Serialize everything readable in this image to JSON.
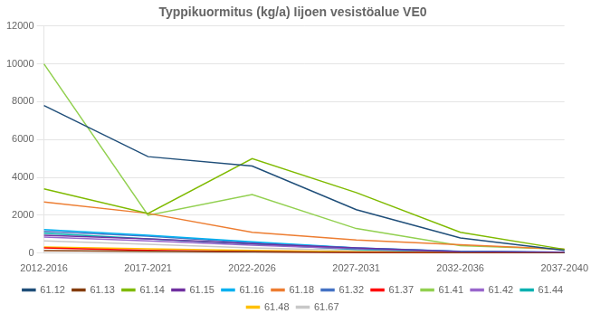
{
  "chart_data": {
    "type": "line",
    "title": "Typpikuormitus (kg/a) Iijoen vesistöalue VE0",
    "categories": [
      "2012-2016",
      "2017-2021",
      "2022-2026",
      "2027-2031",
      "2032-2036",
      "2037-2040"
    ],
    "series": [
      {
        "name": "61.12",
        "color": "#1f4e79",
        "values": [
          7800,
          5100,
          4600,
          2300,
          800,
          150
        ]
      },
      {
        "name": "61.13",
        "color": "#843c0c",
        "values": [
          130,
          100,
          70,
          40,
          15,
          8
        ]
      },
      {
        "name": "61.14",
        "color": "#7fba00",
        "values": [
          3400,
          2100,
          5000,
          3200,
          1100,
          200
        ]
      },
      {
        "name": "61.15",
        "color": "#7030a0",
        "values": [
          950,
          750,
          500,
          280,
          90,
          45
        ]
      },
      {
        "name": "61.16",
        "color": "#00b0f0",
        "values": [
          1250,
          950,
          600,
          280,
          95,
          45
        ]
      },
      {
        "name": "61.18",
        "color": "#ed7d31",
        "values": [
          2700,
          2100,
          1100,
          700,
          450,
          200
        ]
      },
      {
        "name": "61.32",
        "color": "#4472c4",
        "values": [
          1150,
          900,
          550,
          270,
          90,
          40
        ]
      },
      {
        "name": "61.37",
        "color": "#ff0000",
        "values": [
          280,
          150,
          80,
          40,
          15,
          8
        ]
      },
      {
        "name": "61.41",
        "color": "#92d050",
        "values": [
          10000,
          2000,
          3100,
          1300,
          400,
          200
        ]
      },
      {
        "name": "61.42",
        "color": "#9966cc",
        "values": [
          850,
          650,
          420,
          230,
          75,
          35
        ]
      },
      {
        "name": "61.44",
        "color": "#00b0b0",
        "values": [
          1050,
          750,
          480,
          190,
          75,
          35
        ]
      },
      {
        "name": "61.48",
        "color": "#ffc000",
        "values": [
          330,
          230,
          140,
          70,
          28,
          12
        ]
      },
      {
        "name": "61.67",
        "color": "#c8c8c8",
        "values": [
          650,
          470,
          280,
          140,
          48,
          22
        ]
      }
    ],
    "ylim": [
      0,
      12000
    ],
    "yticks": [
      0,
      2000,
      4000,
      6000,
      8000,
      10000,
      12000
    ],
    "grid": true,
    "legend": "bottom"
  }
}
